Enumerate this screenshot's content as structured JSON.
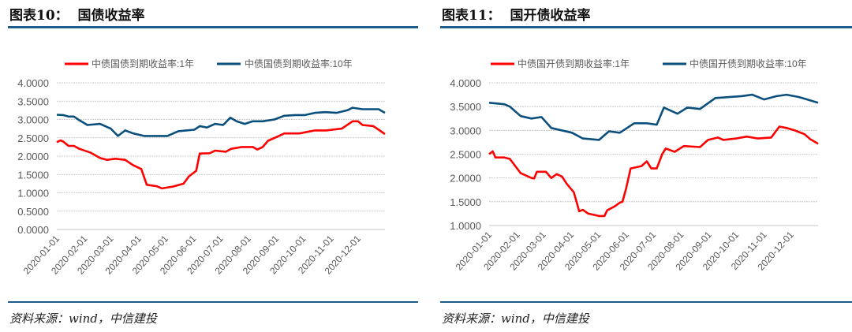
{
  "colors": {
    "rule": "#1f5a8c",
    "series_1y": "#ff0000",
    "series_10y": "#0b4f7c",
    "grid": "#cccccc",
    "axis_text": "#595959"
  },
  "panels": [
    {
      "title": "图表10：  国债收益率",
      "source": "资料来源：wind，中信建投"
    },
    {
      "title": "图表11：  国开债收益率",
      "source": "资料来源：wind，中信建投"
    }
  ],
  "chart_data": [
    {
      "type": "line",
      "title": "",
      "xlabel": "",
      "ylabel": "",
      "ylim": [
        0,
        4
      ],
      "yticks": [
        "0.0000",
        "0.5000",
        "1.0000",
        "1.5000",
        "2.0000",
        "2.5000",
        "3.0000",
        "3.5000",
        "4.0000"
      ],
      "xlim": [
        "2020-01-01",
        "2020-12-31"
      ],
      "xticks": [
        "2020-01-01",
        "2020-02-01",
        "2020-03-01",
        "2020-04-01",
        "2020-05-01",
        "2020-06-01",
        "2020-07-01",
        "2020-08-01",
        "2020-09-01",
        "2020-10-01",
        "2020-11-01",
        "2020-12-01"
      ],
      "grid": true,
      "legend": "top",
      "series": [
        {
          "name": "中债国债到期收益率:1年",
          "color": "#ff0000",
          "x": [
            "2020-01-01",
            "2020-01-05",
            "2020-01-08",
            "2020-01-14",
            "2020-01-20",
            "2020-01-26",
            "2020-02-07",
            "2020-02-18",
            "2020-02-26",
            "2020-03-06",
            "2020-03-17",
            "2020-03-26",
            "2020-04-04",
            "2020-04-10",
            "2020-04-21",
            "2020-04-27",
            "2020-05-09",
            "2020-05-21",
            "2020-05-27",
            "2020-06-04",
            "2020-06-08",
            "2020-06-19",
            "2020-06-25",
            "2020-07-07",
            "2020-07-13",
            "2020-07-25",
            "2020-08-06",
            "2020-08-11",
            "2020-08-17",
            "2020-08-23",
            "2020-09-04",
            "2020-09-10",
            "2020-09-27",
            "2020-10-03",
            "2020-10-14",
            "2020-10-26",
            "2020-11-13",
            "2020-11-25",
            "2020-12-01",
            "2020-12-06",
            "2020-12-18",
            "2020-12-24",
            "2020-12-31"
          ],
          "y": [
            2.38,
            2.43,
            2.4,
            2.28,
            2.28,
            2.2,
            2.1,
            1.95,
            1.9,
            1.93,
            1.9,
            1.75,
            1.65,
            1.22,
            1.18,
            1.12,
            1.17,
            1.25,
            1.45,
            1.6,
            2.07,
            2.08,
            2.15,
            2.12,
            2.2,
            2.25,
            2.25,
            2.18,
            2.25,
            2.42,
            2.55,
            2.62,
            2.62,
            2.65,
            2.7,
            2.7,
            2.75,
            2.95,
            2.95,
            2.85,
            2.82,
            2.72,
            2.6
          ]
        },
        {
          "name": "中债国债到期收益率:10年",
          "color": "#0b4f7c",
          "x": [
            "2020-01-01",
            "2020-01-08",
            "2020-01-14",
            "2020-01-20",
            "2020-01-26",
            "2020-02-04",
            "2020-02-18",
            "2020-03-01",
            "2020-03-09",
            "2020-03-17",
            "2020-03-26",
            "2020-04-07",
            "2020-04-21",
            "2020-05-03",
            "2020-05-15",
            "2020-05-24",
            "2020-06-02",
            "2020-06-08",
            "2020-06-16",
            "2020-06-25",
            "2020-07-04",
            "2020-07-12",
            "2020-07-19",
            "2020-07-28",
            "2020-08-06",
            "2020-08-17",
            "2020-08-30",
            "2020-09-10",
            "2020-09-22",
            "2020-10-03",
            "2020-10-14",
            "2020-10-26",
            "2020-11-07",
            "2020-11-19",
            "2020-11-25",
            "2020-12-06",
            "2020-12-24",
            "2020-12-31"
          ],
          "y": [
            3.13,
            3.12,
            3.08,
            3.08,
            2.98,
            2.85,
            2.88,
            2.75,
            2.55,
            2.7,
            2.62,
            2.55,
            2.55,
            2.55,
            2.68,
            2.7,
            2.72,
            2.82,
            2.78,
            2.88,
            2.85,
            3.05,
            2.95,
            2.88,
            2.95,
            2.95,
            3.0,
            3.1,
            3.12,
            3.12,
            3.18,
            3.2,
            3.18,
            3.25,
            3.32,
            3.28,
            3.28,
            3.18
          ]
        }
      ]
    },
    {
      "type": "line",
      "title": "",
      "xlabel": "",
      "ylabel": "",
      "ylim": [
        1,
        4
      ],
      "yticks": [
        "1.0000",
        "1.5000",
        "2.0000",
        "2.5000",
        "3.0000",
        "3.5000",
        "4.0000"
      ],
      "xlim": [
        "2020-01-01",
        "2020-12-31"
      ],
      "xticks": [
        "2020-01-01",
        "2020-02-01",
        "2020-03-01",
        "2020-04-01",
        "2020-05-01",
        "2020-06-01",
        "2020-07-01",
        "2020-08-01",
        "2020-09-01",
        "2020-10-01",
        "2020-11-01",
        "2020-12-01"
      ],
      "grid": true,
      "legend": "top",
      "series": [
        {
          "name": "中债国开债到期收益率:1年",
          "color": "#ff0000",
          "x": [
            "2020-01-01",
            "2020-01-05",
            "2020-01-08",
            "2020-01-18",
            "2020-01-24",
            "2020-02-05",
            "2020-02-17",
            "2020-02-20",
            "2020-02-23",
            "2020-03-04",
            "2020-03-10",
            "2020-03-16",
            "2020-03-22",
            "2020-03-27",
            "2020-04-04",
            "2020-04-10",
            "2020-04-14",
            "2020-04-20",
            "2020-05-02",
            "2020-05-08",
            "2020-05-11",
            "2020-05-19",
            "2020-05-25",
            "2020-05-28",
            "2020-06-01",
            "2020-06-06",
            "2020-06-18",
            "2020-06-24",
            "2020-06-29",
            "2020-07-05",
            "2020-07-11",
            "2020-07-15",
            "2020-07-25",
            "2020-08-04",
            "2020-08-22",
            "2020-08-31",
            "2020-09-11",
            "2020-09-17",
            "2020-10-01",
            "2020-10-13",
            "2020-10-25",
            "2020-11-09",
            "2020-11-18",
            "2020-11-26",
            "2020-12-05",
            "2020-12-16",
            "2020-12-22",
            "2020-12-31"
          ],
          "y": [
            2.5,
            2.56,
            2.43,
            2.43,
            2.4,
            2.1,
            2.0,
            1.99,
            2.13,
            2.13,
            2.0,
            2.08,
            2.03,
            1.88,
            1.7,
            1.3,
            1.33,
            1.25,
            1.2,
            1.2,
            1.32,
            1.4,
            1.48,
            1.5,
            1.78,
            2.2,
            2.25,
            2.35,
            2.2,
            2.2,
            2.5,
            2.62,
            2.55,
            2.67,
            2.65,
            2.8,
            2.85,
            2.8,
            2.83,
            2.87,
            2.83,
            2.85,
            3.08,
            3.05,
            3.0,
            2.92,
            2.82,
            2.72
          ]
        },
        {
          "name": "中债国开债到期收益率:10年",
          "color": "#0b4f7c",
          "x": [
            "2020-01-01",
            "2020-01-18",
            "2020-01-24",
            "2020-02-05",
            "2020-02-17",
            "2020-02-28",
            "2020-03-10",
            "2020-04-02",
            "2020-04-14",
            "2020-05-02",
            "2020-05-13",
            "2020-05-25",
            "2020-06-10",
            "2020-06-24",
            "2020-07-05",
            "2020-07-13",
            "2020-07-28",
            "2020-08-08",
            "2020-08-22",
            "2020-09-08",
            "2020-10-07",
            "2020-10-19",
            "2020-11-01",
            "2020-11-15",
            "2020-11-26",
            "2020-12-10",
            "2020-12-31"
          ],
          "y": [
            3.58,
            3.55,
            3.5,
            3.3,
            3.25,
            3.28,
            3.05,
            2.95,
            2.83,
            2.8,
            2.98,
            2.95,
            3.15,
            3.15,
            3.12,
            3.48,
            3.35,
            3.48,
            3.45,
            3.68,
            3.72,
            3.75,
            3.65,
            3.72,
            3.75,
            3.7,
            3.58
          ]
        }
      ]
    }
  ]
}
